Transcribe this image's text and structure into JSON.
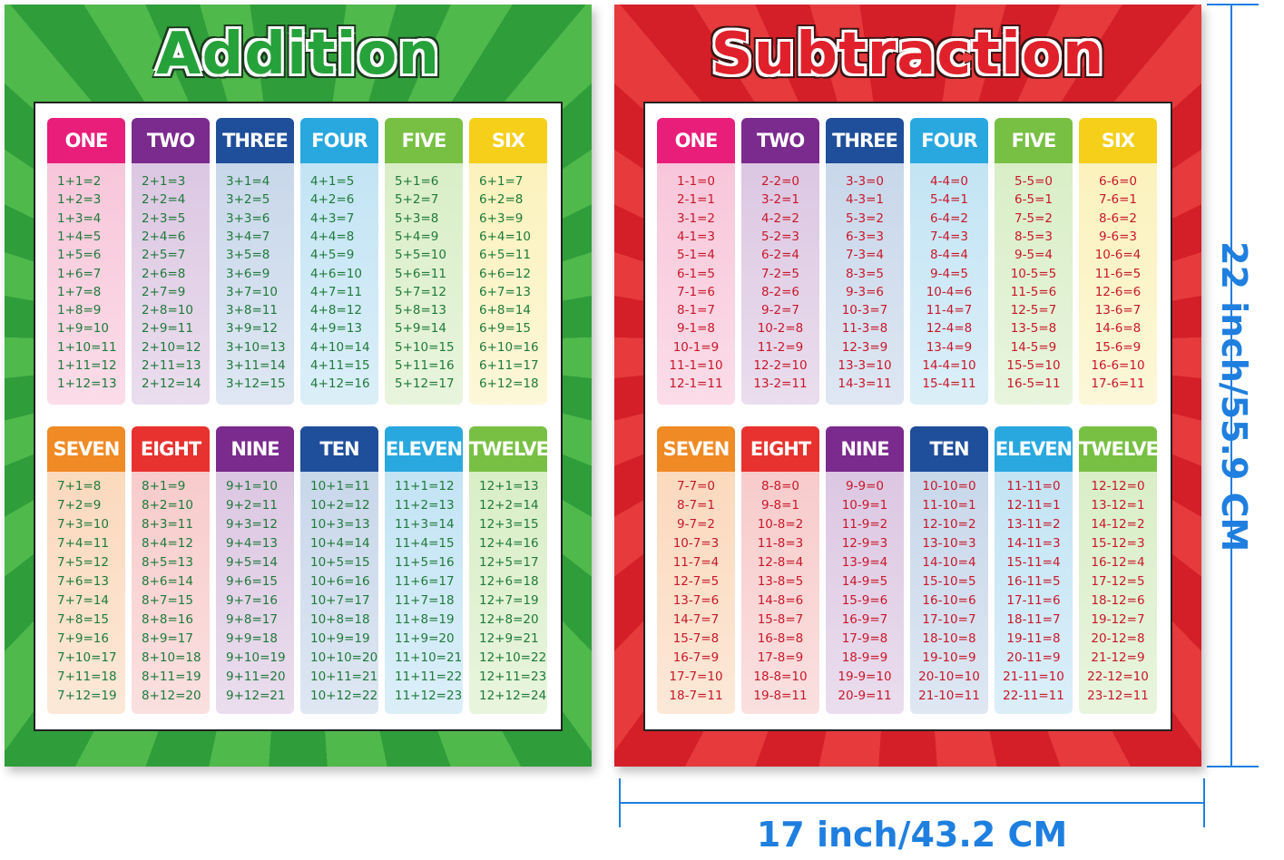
{
  "posters": [
    {
      "title": "Addition",
      "columns": [
        {
          "header": "ONE",
          "rows": [
            "1+1=2",
            "1+2=3",
            "1+3=4",
            "1+4=5",
            "1+5=6",
            "1+6=7",
            "1+7=8",
            "1+8=9",
            "1+9=10",
            "1+10=11",
            "1+11=12",
            "1+12=13"
          ]
        },
        {
          "header": "TWO",
          "rows": [
            "2+1=3",
            "2+2=4",
            "2+3=5",
            "2+4=6",
            "2+5=7",
            "2+6=8",
            "2+7=9",
            "2+8=10",
            "2+9=11",
            "2+10=12",
            "2+11=13",
            "2+12=14"
          ]
        },
        {
          "header": "THREE",
          "rows": [
            "3+1=4",
            "3+2=5",
            "3+3=6",
            "3+4=7",
            "3+5=8",
            "3+6=9",
            "3+7=10",
            "3+8=11",
            "3+9=12",
            "3+10=13",
            "3+11=14",
            "3+12=15"
          ]
        },
        {
          "header": "FOUR",
          "rows": [
            "4+1=5",
            "4+2=6",
            "4+3=7",
            "4+4=8",
            "4+5=9",
            "4+6=10",
            "4+7=11",
            "4+8=12",
            "4+9=13",
            "4+10=14",
            "4+11=15",
            "4+12=16"
          ]
        },
        {
          "header": "FIVE",
          "rows": [
            "5+1=6",
            "5+2=7",
            "5+3=8",
            "5+4=9",
            "5+5=10",
            "5+6=11",
            "5+7=12",
            "5+8=13",
            "5+9=14",
            "5+10=15",
            "5+11=16",
            "5+12=17"
          ]
        },
        {
          "header": "SIX",
          "rows": [
            "6+1=7",
            "6+2=8",
            "6+3=9",
            "6+4=10",
            "6+5=11",
            "6+6=12",
            "6+7=13",
            "6+8=14",
            "6+9=15",
            "6+10=16",
            "6+11=17",
            "6+12=18"
          ]
        },
        {
          "header": "SEVEN",
          "rows": [
            "7+1=8",
            "7+2=9",
            "7+3=10",
            "7+4=11",
            "7+5=12",
            "7+6=13",
            "7+7=14",
            "7+8=15",
            "7+9=16",
            "7+10=17",
            "7+11=18",
            "7+12=19"
          ]
        },
        {
          "header": "EIGHT",
          "rows": [
            "8+1=9",
            "8+2=10",
            "8+3=11",
            "8+4=12",
            "8+5=13",
            "8+6=14",
            "8+7=15",
            "8+8=16",
            "8+9=17",
            "8+10=18",
            "8+11=19",
            "8+12=20"
          ]
        },
        {
          "header": "NINE",
          "rows": [
            "9+1=10",
            "9+2=11",
            "9+3=12",
            "9+4=13",
            "9+5=14",
            "9+6=15",
            "9+7=16",
            "9+8=17",
            "9+9=18",
            "9+10=19",
            "9+11=20",
            "9+12=21"
          ]
        },
        {
          "header": "TEN",
          "rows": [
            "10+1=11",
            "10+2=12",
            "10+3=13",
            "10+4=14",
            "10+5=15",
            "10+6=16",
            "10+7=17",
            "10+8=18",
            "10+9=19",
            "10+10=20",
            "10+11=21",
            "10+12=22"
          ]
        },
        {
          "header": "ELEVEN",
          "rows": [
            "11+1=12",
            "11+2=13",
            "11+3=14",
            "11+4=15",
            "11+5=16",
            "11+6=17",
            "11+7=18",
            "11+8=19",
            "11+9=20",
            "11+10=21",
            "11+11=22",
            "11+12=23"
          ]
        },
        {
          "header": "TWELVE",
          "rows": [
            "12+1=13",
            "12+2=14",
            "12+3=15",
            "12+4=16",
            "12+5=17",
            "12+6=18",
            "12+7=19",
            "12+8=20",
            "12+9=21",
            "12+10=22",
            "12+11=23",
            "12+12=24"
          ]
        }
      ]
    },
    {
      "title": "Subtraction",
      "columns": [
        {
          "header": "ONE",
          "rows": [
            "1-1=0",
            "2-1=1",
            "3-1=2",
            "4-1=3",
            "5-1=4",
            "6-1=5",
            "7-1=6",
            "8-1=7",
            "9-1=8",
            "10-1=9",
            "11-1=10",
            "12-1=11"
          ]
        },
        {
          "header": "TWO",
          "rows": [
            "2-2=0",
            "3-2=1",
            "4-2=2",
            "5-2=3",
            "6-2=4",
            "7-2=5",
            "8-2=6",
            "9-2=7",
            "10-2=8",
            "11-2=9",
            "12-2=10",
            "13-2=11"
          ]
        },
        {
          "header": "THREE",
          "rows": [
            "3-3=0",
            "4-3=1",
            "5-3=2",
            "6-3=3",
            "7-3=4",
            "8-3=5",
            "9-3=6",
            "10-3=7",
            "11-3=8",
            "12-3=9",
            "13-3=10",
            "14-3=11"
          ]
        },
        {
          "header": "FOUR",
          "rows": [
            "4-4=0",
            "5-4=1",
            "6-4=2",
            "7-4=3",
            "8-4=4",
            "9-4=5",
            "10-4=6",
            "11-4=7",
            "12-4=8",
            "13-4=9",
            "14-4=10",
            "15-4=11"
          ]
        },
        {
          "header": "FIVE",
          "rows": [
            "5-5=0",
            "6-5=1",
            "7-5=2",
            "8-5=3",
            "9-5=4",
            "10-5=5",
            "11-5=6",
            "12-5=7",
            "13-5=8",
            "14-5=9",
            "15-5=10",
            "16-5=11"
          ]
        },
        {
          "header": "SIX",
          "rows": [
            "6-6=0",
            "7-6=1",
            "8-6=2",
            "9-6=3",
            "10-6=4",
            "11-6=5",
            "12-6=6",
            "13-6=7",
            "14-6=8",
            "15-6=9",
            "16-6=10",
            "17-6=11"
          ]
        },
        {
          "header": "SEVEN",
          "rows": [
            "7-7=0",
            "8-7=1",
            "9-7=2",
            "10-7=3",
            "11-7=4",
            "12-7=5",
            "13-7=6",
            "14-7=7",
            "15-7=8",
            "16-7=9",
            "17-7=10",
            "18-7=11"
          ]
        },
        {
          "header": "EIGHT",
          "rows": [
            "8-8=0",
            "9-8=1",
            "10-8=2",
            "11-8=3",
            "12-8=4",
            "13-8=5",
            "14-8=6",
            "15-8=7",
            "16-8=8",
            "17-8=9",
            "18-8=10",
            "19-8=11"
          ]
        },
        {
          "header": "NINE",
          "rows": [
            "9-9=0",
            "10-9=1",
            "11-9=2",
            "12-9=3",
            "13-9=4",
            "14-9=5",
            "15-9=6",
            "16-9=7",
            "17-9=8",
            "18-9=9",
            "19-9=10",
            "20-9=11"
          ]
        },
        {
          "header": "TEN",
          "rows": [
            "10-10=0",
            "11-10=1",
            "12-10=2",
            "13-10=3",
            "14-10=4",
            "15-10=5",
            "16-10=6",
            "17-10=7",
            "18-10=8",
            "19-10=9",
            "20-10=10",
            "21-10=11"
          ]
        },
        {
          "header": "ELEVEN",
          "rows": [
            "11-11=0",
            "12-11=1",
            "13-11=2",
            "14-11=3",
            "15-11=4",
            "16-11=5",
            "17-11=6",
            "18-11=7",
            "19-11=8",
            "20-11=9",
            "21-11=10",
            "22-11=11"
          ]
        },
        {
          "header": "TWELVE",
          "rows": [
            "12-12=0",
            "13-12=1",
            "14-12=2",
            "15-12=3",
            "16-12=4",
            "17-12=5",
            "18-12=6",
            "19-12=7",
            "20-12=8",
            "21-12=9",
            "22-12=10",
            "23-12=11"
          ]
        }
      ]
    }
  ],
  "dimensions": {
    "height": "22 inch/55.9 CM",
    "width": "17 inch/43.2 CM"
  }
}
